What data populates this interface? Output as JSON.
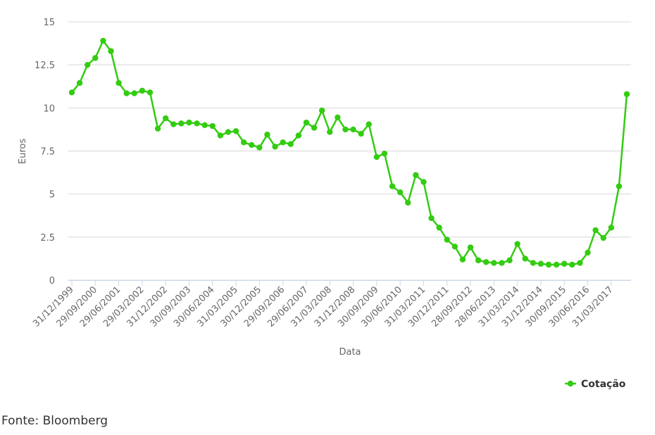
{
  "chart_data": {
    "type": "line",
    "y_label": "Euros",
    "x_label": "Data",
    "categories": [
      "31/12/1999",
      null,
      null,
      "29/09/2000",
      null,
      null,
      "29/06/2001",
      null,
      null,
      "29/03/2002",
      null,
      null,
      "31/12/2002",
      null,
      null,
      "30/09/2003",
      null,
      null,
      "30/06/2004",
      null,
      null,
      "31/03/2005",
      null,
      null,
      "30/12/2005",
      null,
      null,
      "29/09/2006",
      null,
      null,
      "29/06/2007",
      null,
      null,
      "31/03/2008",
      null,
      null,
      "31/12/2008",
      null,
      null,
      "30/09/2009",
      null,
      null,
      "30/06/2010",
      null,
      null,
      "31/03/2011",
      null,
      null,
      "30/12/2011",
      null,
      null,
      "28/09/2012",
      null,
      null,
      "28/06/2013",
      null,
      null,
      "31/03/2014",
      null,
      null,
      "31/12/2014",
      null,
      null,
      "30/09/2015",
      null,
      null,
      "30/06/2016",
      null,
      null,
      "31/03/2017",
      null,
      null
    ],
    "series": [
      {
        "name": "Cotação",
        "color": "#33cc11",
        "values": [
          10.9,
          11.45,
          12.5,
          12.9,
          13.9,
          13.3,
          11.45,
          10.85,
          10.85,
          11.0,
          10.9,
          8.8,
          9.4,
          9.05,
          9.1,
          9.15,
          9.1,
          9.0,
          8.95,
          8.4,
          8.6,
          8.65,
          8.0,
          7.85,
          7.7,
          8.45,
          7.75,
          8.0,
          7.9,
          8.4,
          9.15,
          8.85,
          9.85,
          8.6,
          9.45,
          8.75,
          8.75,
          8.5,
          9.05,
          7.15,
          7.35,
          5.45,
          5.1,
          4.5,
          6.1,
          5.7,
          3.6,
          3.05,
          2.35,
          1.95,
          1.2,
          1.9,
          1.15,
          1.05,
          1.0,
          1.0,
          1.15,
          2.1,
          1.25,
          1.0,
          0.95,
          0.9,
          0.9,
          0.95,
          0.9,
          1.0,
          1.6,
          2.9,
          2.45,
          3.05,
          5.45,
          10.8
        ]
      }
    ],
    "ylim": [
      0,
      15
    ],
    "yticks": [
      0,
      2.5,
      5,
      7.5,
      10,
      12.5,
      15
    ],
    "grid": true,
    "legend": "bottom-right",
    "source": "Fonte: Bloomberg"
  }
}
